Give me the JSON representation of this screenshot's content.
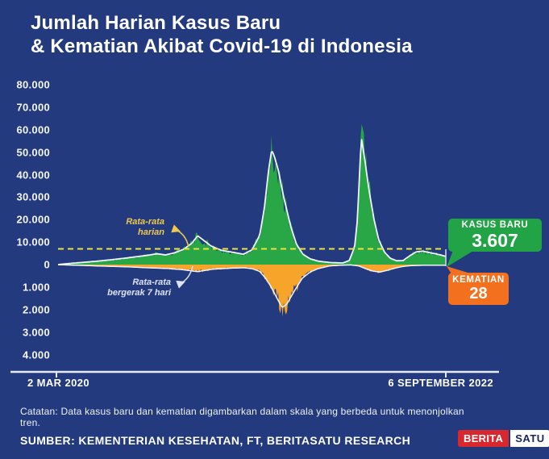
{
  "title": {
    "line1": "Jumlah Harian Kasus Baru",
    "line2": "& Kematian Akibat Covid-19 di Indonesia"
  },
  "colors": {
    "background": "#243A7E",
    "cases_fill": "#29A645",
    "deaths_fill": "#F7A42B",
    "avg_line": "#F2F6FC",
    "reference_dashed": "#E9E33B",
    "cases_badge": "#22A345",
    "deaths_badge": "#F3701F",
    "axis": "#E6EAF5",
    "logo_red": "#D7282F"
  },
  "chart_data": {
    "type": "area",
    "title": "Jumlah Harian Kasus Baru & Kematian Akibat Covid-19 di Indonesia",
    "x_range_labels": {
      "start": "2 MAR 2020",
      "end": "6 SEPTEMBER 2022"
    },
    "upper_axis": {
      "tick_labels": [
        "80.000",
        "70.000",
        "60.000",
        "50.000",
        "40.000",
        "30.000",
        "20.000",
        "10.000"
      ],
      "zero_label": "0",
      "max": 80000,
      "step": 10000,
      "meaning": "kasus baru per hari"
    },
    "lower_axis": {
      "tick_labels": [
        "1.000",
        "2.000",
        "3.000",
        "4.000"
      ],
      "max": 4000,
      "step": 1000,
      "meaning": "kematian per hari (skala terbalik)"
    },
    "reference_line_value": 7000,
    "grid": false,
    "series": [
      {
        "name": "Rata-rata bergerak 7 hari - kasus baru",
        "points": [
          [
            0,
            0
          ],
          [
            0.017,
            300
          ],
          [
            0.058,
            900
          ],
          [
            0.1,
            1500
          ],
          [
            0.14,
            2200
          ],
          [
            0.18,
            3000
          ],
          [
            0.225,
            4000
          ],
          [
            0.256,
            4800
          ],
          [
            0.277,
            4300
          ],
          [
            0.3,
            5200
          ],
          [
            0.324,
            6800
          ],
          [
            0.345,
            9500
          ],
          [
            0.36,
            12800
          ],
          [
            0.374,
            11000
          ],
          [
            0.395,
            8200
          ],
          [
            0.422,
            6300
          ],
          [
            0.453,
            5400
          ],
          [
            0.478,
            4600
          ],
          [
            0.5,
            6500
          ],
          [
            0.52,
            13000
          ],
          [
            0.532,
            25000
          ],
          [
            0.543,
            42000
          ],
          [
            0.551,
            51000
          ],
          [
            0.558,
            48000
          ],
          [
            0.568,
            42000
          ],
          [
            0.582,
            30000
          ],
          [
            0.6,
            17000
          ],
          [
            0.615,
            9000
          ],
          [
            0.632,
            4500
          ],
          [
            0.651,
            2500
          ],
          [
            0.672,
            1500
          ],
          [
            0.703,
            900
          ],
          [
            0.734,
            700
          ],
          [
            0.751,
            1800
          ],
          [
            0.765,
            8000
          ],
          [
            0.772,
            20000
          ],
          [
            0.782,
            56500
          ],
          [
            0.79,
            48000
          ],
          [
            0.802,
            33000
          ],
          [
            0.815,
            20000
          ],
          [
            0.827,
            11000
          ],
          [
            0.842,
            5500
          ],
          [
            0.857,
            2800
          ],
          [
            0.873,
            1700
          ],
          [
            0.89,
            1800
          ],
          [
            0.906,
            3800
          ],
          [
            0.923,
            5600
          ],
          [
            0.94,
            6000
          ],
          [
            0.956,
            5400
          ],
          [
            0.973,
            4800
          ],
          [
            0.988,
            4200
          ],
          [
            1.0,
            3607
          ]
        ]
      },
      {
        "name": "Rata-rata bergerak 7 hari - kematian",
        "points": [
          [
            0,
            5
          ],
          [
            0.06,
            35
          ],
          [
            0.12,
            70
          ],
          [
            0.18,
            100
          ],
          [
            0.23,
            140
          ],
          [
            0.28,
            170
          ],
          [
            0.32,
            220
          ],
          [
            0.345,
            280
          ],
          [
            0.36,
            310
          ],
          [
            0.4,
            200
          ],
          [
            0.45,
            155
          ],
          [
            0.48,
            140
          ],
          [
            0.5,
            180
          ],
          [
            0.52,
            300
          ],
          [
            0.535,
            600
          ],
          [
            0.55,
            1000
          ],
          [
            0.565,
            1500
          ],
          [
            0.578,
            1900
          ],
          [
            0.59,
            1750
          ],
          [
            0.61,
            1150
          ],
          [
            0.63,
            600
          ],
          [
            0.65,
            330
          ],
          [
            0.67,
            180
          ],
          [
            0.7,
            60
          ],
          [
            0.73,
            25
          ],
          [
            0.755,
            15
          ],
          [
            0.776,
            60
          ],
          [
            0.79,
            160
          ],
          [
            0.81,
            280
          ],
          [
            0.83,
            330
          ],
          [
            0.85,
            250
          ],
          [
            0.87,
            150
          ],
          [
            0.89,
            80
          ],
          [
            0.91,
            45
          ],
          [
            0.94,
            30
          ],
          [
            0.97,
            25
          ],
          [
            1.0,
            28
          ]
        ]
      }
    ],
    "raw_daily_spikes": {
      "cases": [
        [
          0.551,
          56000
        ],
        [
          0.782,
          64700
        ]
      ],
      "deaths": [
        [
          0.585,
          2060
        ]
      ]
    },
    "annotations": [
      {
        "text": "Rata-rata harian",
        "color": "#EFC94C"
      },
      {
        "text": "Rata-rata bergerak 7 hari",
        "color": "#DDE3F2"
      }
    ],
    "latest": {
      "kasus_baru": 3607,
      "kematian": 28,
      "date": "6 SEPTEMBER 2022"
    }
  },
  "axis": {
    "x_start": "2 MAR 2020",
    "x_end": "6 SEPTEMBER 2022"
  },
  "callouts": {
    "cases": {
      "label": "KASUS BARU",
      "value": "3.607"
    },
    "deaths": {
      "label": "KEMATIAN",
      "value": "28"
    }
  },
  "annotations": {
    "daily": "Rata-rata harian",
    "moving7": "Rata-rata bergerak 7 hari"
  },
  "footer": {
    "note": "Catatan: Data kasus baru dan kematian digambarkan dalam skala yang berbeda untuk menonjolkan tren.",
    "source": "SUMBER: KEMENTERIAN KESEHATAN, FT, BERITASATU RESEARCH"
  },
  "logo": {
    "part1": "BERITA",
    "part2": "SATU"
  }
}
